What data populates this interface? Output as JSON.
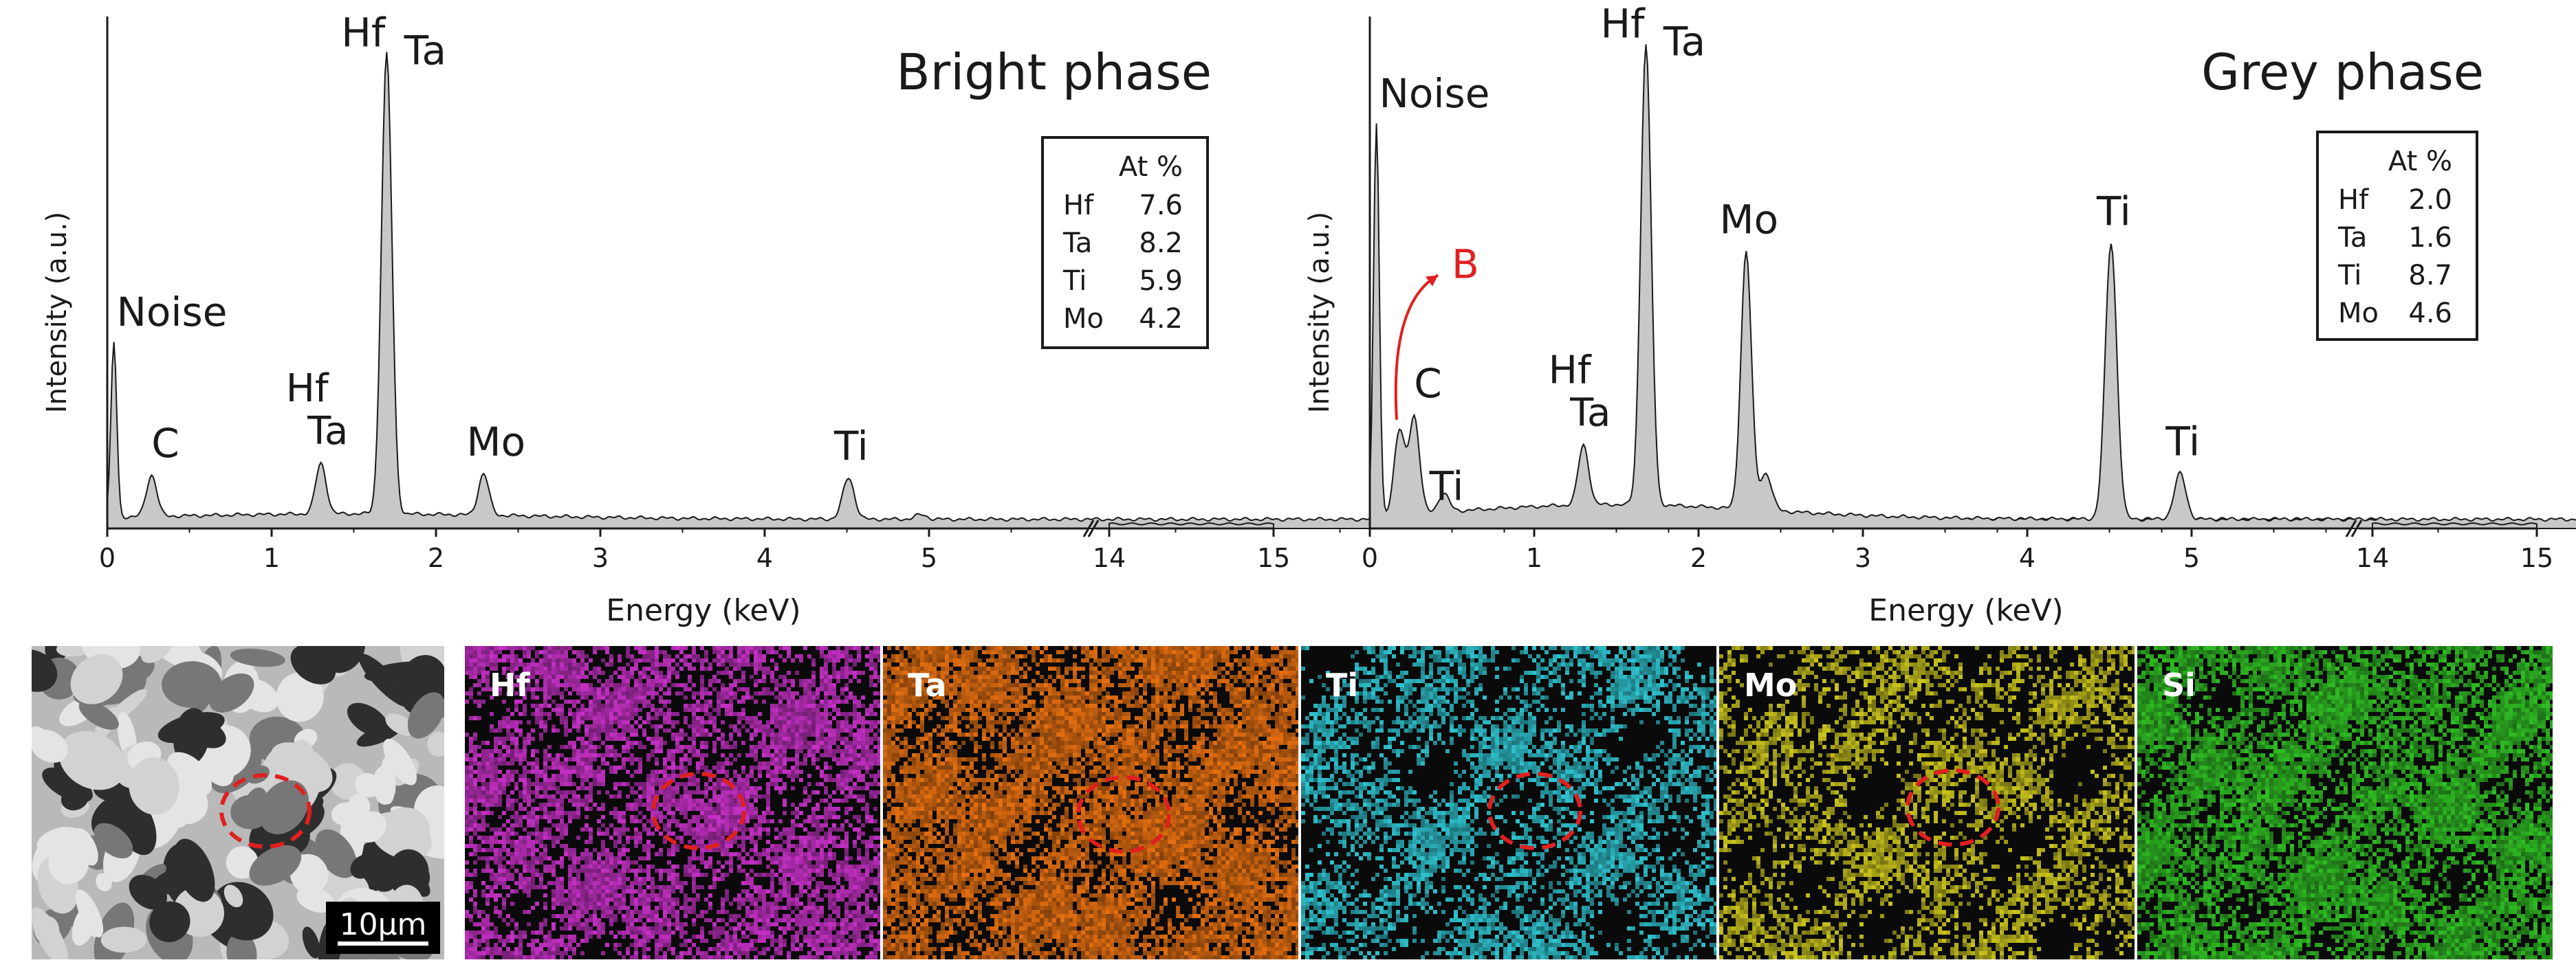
{
  "chart_data": [
    {
      "type": "area",
      "title": "Bright phase",
      "xlabel": "Energy (keV)",
      "ylabel": "Intensity (a.u.)",
      "xlim": [
        0,
        15
      ],
      "x_break": [
        13.9,
        14
      ],
      "xticks": [
        "0",
        "1",
        "2",
        "3",
        "4",
        "5",
        "14",
        "15"
      ],
      "peaks": [
        {
          "x": 0.04,
          "y": 0.38,
          "label": "Noise"
        },
        {
          "x": 0.27,
          "y": 0.09,
          "label": "C"
        },
        {
          "x": 1.3,
          "y": 0.11,
          "label": "Hf\nTa"
        },
        {
          "x": 1.7,
          "y": 1.0,
          "label": "Hf Ta"
        },
        {
          "x": 2.29,
          "y": 0.09,
          "label": "Mo"
        },
        {
          "x": 4.51,
          "y": 0.09,
          "label": "Ti"
        }
      ],
      "table": {
        "header": "At %",
        "rows": [
          [
            "Hf",
            "7.6"
          ],
          [
            "Ta",
            "8.2"
          ],
          [
            "Ti",
            "5.9"
          ],
          [
            "Mo",
            "4.2"
          ]
        ]
      }
    },
    {
      "type": "area",
      "title": "Grey phase",
      "xlabel": "Energy (keV)",
      "ylabel": "Intensity (a.u.)",
      "xlim": [
        0,
        15
      ],
      "x_break": [
        13.9,
        14
      ],
      "xticks": [
        "0",
        "1",
        "2",
        "3",
        "4",
        "5",
        "14",
        "15"
      ],
      "peaks": [
        {
          "x": 0.04,
          "y": 0.85,
          "label": "Noise"
        },
        {
          "x": 0.18,
          "y": 0.18,
          "label": "B"
        },
        {
          "x": 0.27,
          "y": 0.21,
          "label": "C"
        },
        {
          "x": 0.45,
          "y": 0.04,
          "label": "Ti"
        },
        {
          "x": 1.3,
          "y": 0.13,
          "label": "Hf\nTa"
        },
        {
          "x": 1.68,
          "y": 1.0,
          "label": "Hf Ta"
        },
        {
          "x": 2.29,
          "y": 0.56,
          "label": "Mo"
        },
        {
          "x": 4.51,
          "y": 0.6,
          "label": "Ti"
        },
        {
          "x": 4.93,
          "y": 0.1,
          "label": "Ti"
        }
      ],
      "table": {
        "header": "At %",
        "rows": [
          [
            "Hf",
            "2.0"
          ],
          [
            "Ta",
            "1.6"
          ],
          [
            "Ti",
            "8.7"
          ],
          [
            "Mo",
            "4.6"
          ]
        ]
      }
    }
  ],
  "sem": {
    "scalebar": "10μm"
  },
  "maps": [
    {
      "label": "Hf",
      "color": "#c630c6"
    },
    {
      "label": "Ta",
      "color": "#e56f10"
    },
    {
      "label": "Ti",
      "color": "#2ec3cf"
    },
    {
      "label": "Mo",
      "color": "#c9c41c"
    },
    {
      "label": "Si",
      "color": "#2fbd23"
    }
  ],
  "colors": {
    "fill": "#c8c8c8",
    "line": "#1a1a1a",
    "red": "#e0201f"
  }
}
